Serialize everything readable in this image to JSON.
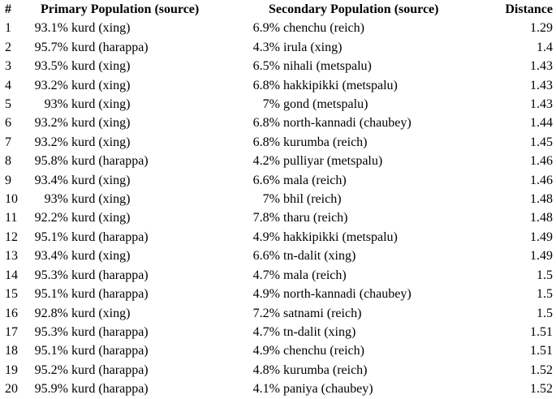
{
  "page": {
    "background": "#ffffff",
    "text_color": "#000000"
  },
  "table": {
    "headers": {
      "num": "#",
      "primary": "Primary Population (source)",
      "secondary": "Secondary Population (source)",
      "distance": "Distance"
    },
    "rows": [
      {
        "num": "1",
        "primary_pct": "93.1%",
        "primary_name": "kurd (xing)",
        "secondary_pct": "6.9%",
        "secondary_name": "chenchu (reich)",
        "distance": "1.29"
      },
      {
        "num": "2",
        "primary_pct": "95.7%",
        "primary_name": "kurd (harappa)",
        "secondary_pct": "4.3%",
        "secondary_name": "irula (xing)",
        "distance": "1.4"
      },
      {
        "num": "3",
        "primary_pct": "93.5%",
        "primary_name": "kurd (xing)",
        "secondary_pct": "6.5%",
        "secondary_name": "nihali (metspalu)",
        "distance": "1.43"
      },
      {
        "num": "4",
        "primary_pct": "93.2%",
        "primary_name": "kurd (xing)",
        "secondary_pct": "6.8%",
        "secondary_name": "hakkipikki (metspalu)",
        "distance": "1.43"
      },
      {
        "num": "5",
        "primary_pct": "93%",
        "primary_name": "kurd (xing)",
        "secondary_pct": "7%",
        "secondary_name": "gond (metspalu)",
        "distance": "1.43"
      },
      {
        "num": "6",
        "primary_pct": "93.2%",
        "primary_name": "kurd (xing)",
        "secondary_pct": "6.8%",
        "secondary_name": "north-kannadi (chaubey)",
        "distance": "1.44"
      },
      {
        "num": "7",
        "primary_pct": "93.2%",
        "primary_name": "kurd (xing)",
        "secondary_pct": "6.8%",
        "secondary_name": "kurumba (reich)",
        "distance": "1.45"
      },
      {
        "num": "8",
        "primary_pct": "95.8%",
        "primary_name": "kurd (harappa)",
        "secondary_pct": "4.2%",
        "secondary_name": "pulliyar (metspalu)",
        "distance": "1.46"
      },
      {
        "num": "9",
        "primary_pct": "93.4%",
        "primary_name": "kurd (xing)",
        "secondary_pct": "6.6%",
        "secondary_name": "mala (reich)",
        "distance": "1.46"
      },
      {
        "num": "10",
        "primary_pct": "93%",
        "primary_name": "kurd (xing)",
        "secondary_pct": "7%",
        "secondary_name": "bhil (reich)",
        "distance": "1.48"
      },
      {
        "num": "11",
        "primary_pct": "92.2%",
        "primary_name": "kurd (xing)",
        "secondary_pct": "7.8%",
        "secondary_name": "tharu (reich)",
        "distance": "1.48"
      },
      {
        "num": "12",
        "primary_pct": "95.1%",
        "primary_name": "kurd (harappa)",
        "secondary_pct": "4.9%",
        "secondary_name": "hakkipikki (metspalu)",
        "distance": "1.49"
      },
      {
        "num": "13",
        "primary_pct": "93.4%",
        "primary_name": "kurd (xing)",
        "secondary_pct": "6.6%",
        "secondary_name": "tn-dalit (xing)",
        "distance": "1.49"
      },
      {
        "num": "14",
        "primary_pct": "95.3%",
        "primary_name": "kurd (harappa)",
        "secondary_pct": "4.7%",
        "secondary_name": "mala (reich)",
        "distance": "1.5"
      },
      {
        "num": "15",
        "primary_pct": "95.1%",
        "primary_name": "kurd (harappa)",
        "secondary_pct": "4.9%",
        "secondary_name": "north-kannadi (chaubey)",
        "distance": "1.5"
      },
      {
        "num": "16",
        "primary_pct": "92.8%",
        "primary_name": "kurd (xing)",
        "secondary_pct": "7.2%",
        "secondary_name": "satnami (reich)",
        "distance": "1.5"
      },
      {
        "num": "17",
        "primary_pct": "95.3%",
        "primary_name": "kurd (harappa)",
        "secondary_pct": "4.7%",
        "secondary_name": "tn-dalit (xing)",
        "distance": "1.51"
      },
      {
        "num": "18",
        "primary_pct": "95.1%",
        "primary_name": "kurd (harappa)",
        "secondary_pct": "4.9%",
        "secondary_name": "chenchu (reich)",
        "distance": "1.51"
      },
      {
        "num": "19",
        "primary_pct": "95.2%",
        "primary_name": "kurd (harappa)",
        "secondary_pct": "4.8%",
        "secondary_name": "kurumba (reich)",
        "distance": "1.52"
      },
      {
        "num": "20",
        "primary_pct": "95.9%",
        "primary_name": "kurd (harappa)",
        "secondary_pct": "4.1%",
        "secondary_name": "paniya (chaubey)",
        "distance": "1.52"
      }
    ]
  }
}
